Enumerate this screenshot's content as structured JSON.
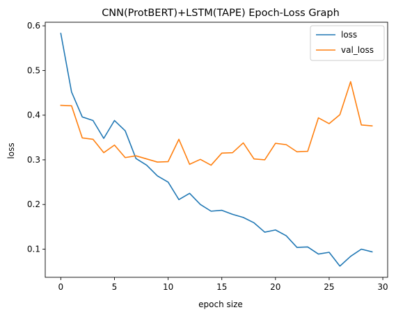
{
  "chart_data": {
    "type": "line",
    "title": "CNN(ProtBERT)+LSTM(TAPE) Epoch-Loss Graph",
    "xlabel": "epoch size",
    "ylabel": "loss",
    "xlim": [
      -1.45,
      30.45
    ],
    "ylim": [
      0.037,
      0.608
    ],
    "xticks": [
      0,
      5,
      10,
      15,
      20,
      25,
      30
    ],
    "yticks": [
      0.1,
      0.2,
      0.3,
      0.4,
      0.5,
      0.6
    ],
    "xtick_labels": [
      "0",
      "5",
      "10",
      "15",
      "20",
      "25",
      "30"
    ],
    "ytick_labels": [
      "0.1",
      "0.2",
      "0.3",
      "0.4",
      "0.5",
      "0.6"
    ],
    "grid": false,
    "legend": "top-right",
    "x": [
      0,
      1,
      2,
      3,
      4,
      5,
      6,
      7,
      8,
      9,
      10,
      11,
      12,
      13,
      14,
      15,
      16,
      17,
      18,
      19,
      20,
      21,
      22,
      23,
      24,
      25,
      26,
      27,
      28,
      29
    ],
    "series": [
      {
        "name": "loss",
        "color": "#1f77b4",
        "values": [
          0.583,
          0.452,
          0.396,
          0.388,
          0.348,
          0.388,
          0.365,
          0.303,
          0.288,
          0.264,
          0.25,
          0.211,
          0.225,
          0.2,
          0.185,
          0.187,
          0.178,
          0.171,
          0.159,
          0.138,
          0.143,
          0.13,
          0.104,
          0.105,
          0.089,
          0.093,
          0.062,
          0.084,
          0.1,
          0.094
        ]
      },
      {
        "name": "val_loss",
        "color": "#ff7f0e",
        "values": [
          0.422,
          0.421,
          0.349,
          0.346,
          0.316,
          0.333,
          0.305,
          0.309,
          0.302,
          0.295,
          0.296,
          0.346,
          0.29,
          0.301,
          0.288,
          0.315,
          0.316,
          0.338,
          0.302,
          0.3,
          0.337,
          0.334,
          0.318,
          0.319,
          0.394,
          0.381,
          0.401,
          0.475,
          0.378,
          0.376
        ]
      }
    ]
  }
}
